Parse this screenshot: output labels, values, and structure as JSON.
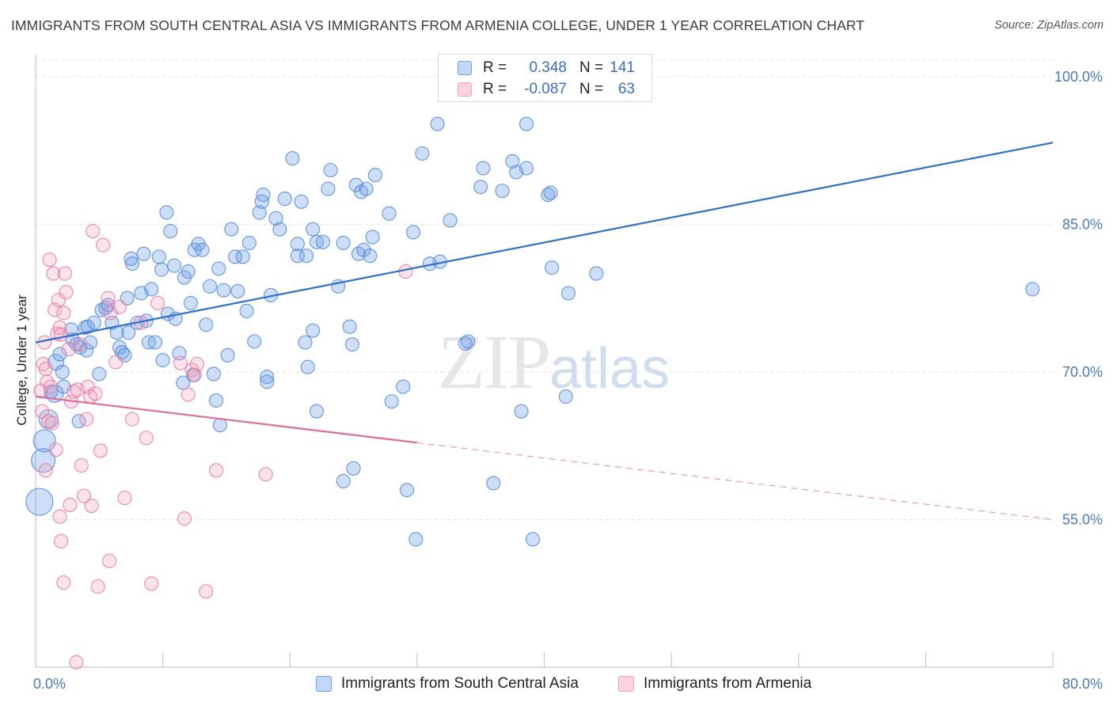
{
  "header": {
    "title": "IMMIGRANTS FROM SOUTH CENTRAL ASIA VS IMMIGRANTS FROM ARMENIA COLLEGE, UNDER 1 YEAR CORRELATION CHART",
    "source": "Source: ZipAtlas.com"
  },
  "watermark": {
    "zip": "ZIP",
    "atlas": "atlas"
  },
  "legend": {
    "rows": [
      {
        "r_label": "R =",
        "r_value": "0.348",
        "n_label": "N =",
        "n_value": "141",
        "color": "#6fa0e8"
      },
      {
        "r_label": "R =",
        "r_value": "-0.087",
        "n_label": "N =",
        "n_value": "63",
        "color": "#f2a2bc"
      }
    ]
  },
  "chart_data": {
    "type": "scatter",
    "title": "IMMIGRANTS FROM SOUTH CENTRAL ASIA VS IMMIGRANTS FROM ARMENIA COLLEGE, UNDER 1 YEAR CORRELATION CHART",
    "xlabel": "",
    "ylabel": "College, Under 1 year",
    "xlim": [
      0,
      80
    ],
    "ylim": [
      40,
      102
    ],
    "x_tick_labels": [
      "0.0%",
      "80.0%"
    ],
    "y_ticks": [
      55,
      70,
      85,
      100
    ],
    "y_tick_labels": [
      "55.0%",
      "70.0%",
      "85.0%",
      "100.0%"
    ],
    "grid": true,
    "legend_position": "top-center",
    "series": [
      {
        "name": "Immigrants from South Central Asia",
        "color": "#6fa0e8",
        "stroke": "#4f86d8",
        "trend": {
          "x": [
            0,
            80
          ],
          "y": [
            73.0,
            93.3
          ],
          "dashed_from": null
        },
        "points": [
          [
            0.3,
            56.8
          ],
          [
            0.6,
            61.0
          ],
          [
            0.7,
            63.0
          ],
          [
            1.0,
            65.2
          ],
          [
            1.2,
            68.0
          ],
          [
            1.5,
            67.8
          ],
          [
            1.6,
            71.0
          ],
          [
            1.9,
            71.8
          ],
          [
            2.1,
            70.0
          ],
          [
            2.2,
            68.5
          ],
          [
            3.4,
            65.0
          ],
          [
            2.8,
            74.3
          ],
          [
            2.9,
            73.3
          ],
          [
            3.2,
            72.8
          ],
          [
            3.5,
            72.5
          ],
          [
            3.9,
            74.5
          ],
          [
            4.0,
            72.2
          ],
          [
            4.3,
            73.0
          ],
          [
            4.6,
            75.0
          ],
          [
            5.0,
            69.8
          ],
          [
            5.2,
            76.3
          ],
          [
            5.5,
            76.5
          ],
          [
            5.7,
            76.8
          ],
          [
            4.1,
            74.6
          ],
          [
            6.0,
            75.0
          ],
          [
            6.4,
            74.0
          ],
          [
            6.6,
            72.5
          ],
          [
            6.8,
            72.0
          ],
          [
            7.0,
            71.7
          ],
          [
            7.2,
            77.5
          ],
          [
            7.3,
            74.0
          ],
          [
            7.5,
            81.5
          ],
          [
            7.6,
            81.0
          ],
          [
            8.0,
            75.0
          ],
          [
            8.3,
            78.0
          ],
          [
            8.5,
            82.0
          ],
          [
            8.9,
            73.0
          ],
          [
            8.7,
            75.2
          ],
          [
            9.1,
            78.4
          ],
          [
            9.7,
            81.7
          ],
          [
            9.4,
            73.0
          ],
          [
            9.9,
            80.4
          ],
          [
            10.0,
            71.2
          ],
          [
            10.3,
            86.2
          ],
          [
            10.4,
            75.9
          ],
          [
            10.6,
            84.3
          ],
          [
            10.9,
            80.8
          ],
          [
            11.3,
            71.9
          ],
          [
            11.0,
            75.4
          ],
          [
            11.7,
            79.6
          ],
          [
            12.0,
            80.2
          ],
          [
            12.2,
            77.0
          ],
          [
            11.6,
            68.9
          ],
          [
            12.5,
            82.4
          ],
          [
            12.8,
            83.0
          ],
          [
            12.4,
            69.7
          ],
          [
            13.1,
            82.4
          ],
          [
            13.4,
            74.8
          ],
          [
            13.7,
            78.7
          ],
          [
            14.0,
            69.8
          ],
          [
            14.2,
            67.1
          ],
          [
            14.4,
            80.5
          ],
          [
            14.8,
            78.3
          ],
          [
            14.5,
            64.6
          ],
          [
            15.1,
            71.7
          ],
          [
            15.4,
            84.5
          ],
          [
            15.7,
            81.7
          ],
          [
            15.9,
            78.2
          ],
          [
            16.3,
            81.7
          ],
          [
            16.6,
            76.2
          ],
          [
            16.8,
            83.1
          ],
          [
            17.2,
            73.1
          ],
          [
            17.6,
            86.2
          ],
          [
            17.8,
            87.3
          ],
          [
            17.9,
            88.0
          ],
          [
            18.2,
            69.5
          ],
          [
            18.5,
            77.8
          ],
          [
            18.2,
            69.0
          ],
          [
            18.9,
            85.6
          ],
          [
            19.2,
            84.5
          ],
          [
            19.6,
            87.6
          ],
          [
            20.2,
            91.7
          ],
          [
            20.6,
            83.0
          ],
          [
            20.6,
            81.8
          ],
          [
            20.9,
            87.3
          ],
          [
            21.3,
            81.8
          ],
          [
            21.8,
            84.5
          ],
          [
            22.1,
            83.2
          ],
          [
            22.6,
            83.2
          ],
          [
            21.2,
            73.0
          ],
          [
            21.4,
            70.5
          ],
          [
            21.8,
            74.2
          ],
          [
            22.1,
            66.0
          ],
          [
            23.0,
            88.6
          ],
          [
            23.2,
            90.5
          ],
          [
            23.8,
            78.7
          ],
          [
            24.2,
            83.1
          ],
          [
            24.7,
            74.6
          ],
          [
            24.9,
            72.8
          ],
          [
            25.2,
            89.0
          ],
          [
            25.4,
            82.0
          ],
          [
            25.6,
            88.3
          ],
          [
            25.8,
            82.4
          ],
          [
            26.0,
            88.6
          ],
          [
            26.3,
            81.8
          ],
          [
            26.7,
            90.0
          ],
          [
            26.5,
            83.7
          ],
          [
            27.8,
            86.1
          ],
          [
            28.0,
            67.0
          ],
          [
            28.9,
            68.5
          ],
          [
            29.2,
            58.0
          ],
          [
            29.7,
            84.2
          ],
          [
            29.9,
            53.0
          ],
          [
            30.4,
            92.2
          ],
          [
            31.0,
            81.0
          ],
          [
            31.6,
            95.2
          ],
          [
            31.8,
            81.2
          ],
          [
            32.6,
            85.4
          ],
          [
            33.8,
            72.9
          ],
          [
            34.0,
            73.1
          ],
          [
            35.2,
            90.7
          ],
          [
            35.0,
            88.8
          ],
          [
            36.7,
            88.4
          ],
          [
            37.5,
            91.4
          ],
          [
            37.8,
            90.3
          ],
          [
            38.2,
            66.0
          ],
          [
            38.6,
            95.2
          ],
          [
            38.6,
            90.7
          ],
          [
            39.1,
            53.0
          ],
          [
            40.3,
            88.0
          ],
          [
            40.5,
            88.2
          ],
          [
            40.6,
            80.6
          ],
          [
            41.7,
            67.5
          ],
          [
            41.9,
            78.0
          ],
          [
            44.1,
            80.0
          ],
          [
            78.4,
            78.4
          ],
          [
            36.0,
            58.7
          ],
          [
            24.2,
            58.9
          ],
          [
            25.0,
            60.2
          ]
        ]
      },
      {
        "name": "Immigrants from Armenia",
        "color": "#f2a2bc",
        "stroke": "#e5799d",
        "trend": {
          "x": [
            0,
            80
          ],
          "y": [
            67.5,
            55.0
          ],
          "dashed_from": 30
        },
        "points": [
          [
            0.4,
            68.1
          ],
          [
            0.5,
            66.0
          ],
          [
            0.6,
            70.8
          ],
          [
            0.7,
            73.0
          ],
          [
            0.8,
            70.3
          ],
          [
            0.9,
            69.0
          ],
          [
            1.0,
            65.0
          ],
          [
            1.1,
            81.4
          ],
          [
            1.2,
            68.5
          ],
          [
            1.3,
            64.8
          ],
          [
            1.4,
            80.0
          ],
          [
            1.5,
            76.3
          ],
          [
            1.7,
            73.9
          ],
          [
            1.8,
            77.3
          ],
          [
            1.9,
            74.5
          ],
          [
            2.0,
            73.8
          ],
          [
            2.2,
            76.0
          ],
          [
            2.3,
            80.0
          ],
          [
            2.4,
            78.1
          ],
          [
            2.6,
            72.3
          ],
          [
            2.8,
            67.0
          ],
          [
            3.0,
            68.0
          ],
          [
            3.3,
            68.2
          ],
          [
            3.5,
            72.8
          ],
          [
            3.6,
            60.5
          ],
          [
            3.8,
            57.4
          ],
          [
            4.0,
            65.2
          ],
          [
            4.1,
            68.5
          ],
          [
            4.3,
            67.5
          ],
          [
            4.5,
            84.3
          ],
          [
            4.7,
            67.8
          ],
          [
            5.1,
            62.0
          ],
          [
            5.3,
            82.9
          ],
          [
            5.7,
            77.5
          ],
          [
            5.9,
            76.0
          ],
          [
            6.3,
            71.0
          ],
          [
            6.6,
            76.6
          ],
          [
            7.0,
            57.2
          ],
          [
            7.6,
            65.2
          ],
          [
            8.3,
            75.0
          ],
          [
            8.7,
            63.3
          ],
          [
            9.1,
            48.5
          ],
          [
            9.6,
            77.0
          ],
          [
            11.7,
            55.1
          ],
          [
            11.4,
            70.9
          ],
          [
            12.0,
            67.7
          ],
          [
            12.3,
            70.2
          ],
          [
            12.5,
            69.7
          ],
          [
            12.7,
            70.8
          ],
          [
            13.4,
            47.7
          ],
          [
            14.2,
            60.0
          ],
          [
            18.1,
            59.6
          ],
          [
            29.1,
            80.2
          ],
          [
            1.9,
            55.3
          ],
          [
            2.0,
            52.8
          ],
          [
            2.2,
            48.6
          ],
          [
            3.2,
            40.5
          ],
          [
            4.9,
            48.2
          ],
          [
            5.8,
            50.8
          ],
          [
            0.8,
            60.0
          ],
          [
            1.6,
            62.1
          ],
          [
            2.7,
            56.5
          ],
          [
            4.4,
            56.4
          ]
        ]
      }
    ]
  },
  "bottom_legend": {
    "items": [
      {
        "label": "Immigrants from South Central Asia",
        "color": "#6fa0e8"
      },
      {
        "label": "Immigrants from Armenia",
        "color": "#f2a2bc"
      }
    ]
  }
}
